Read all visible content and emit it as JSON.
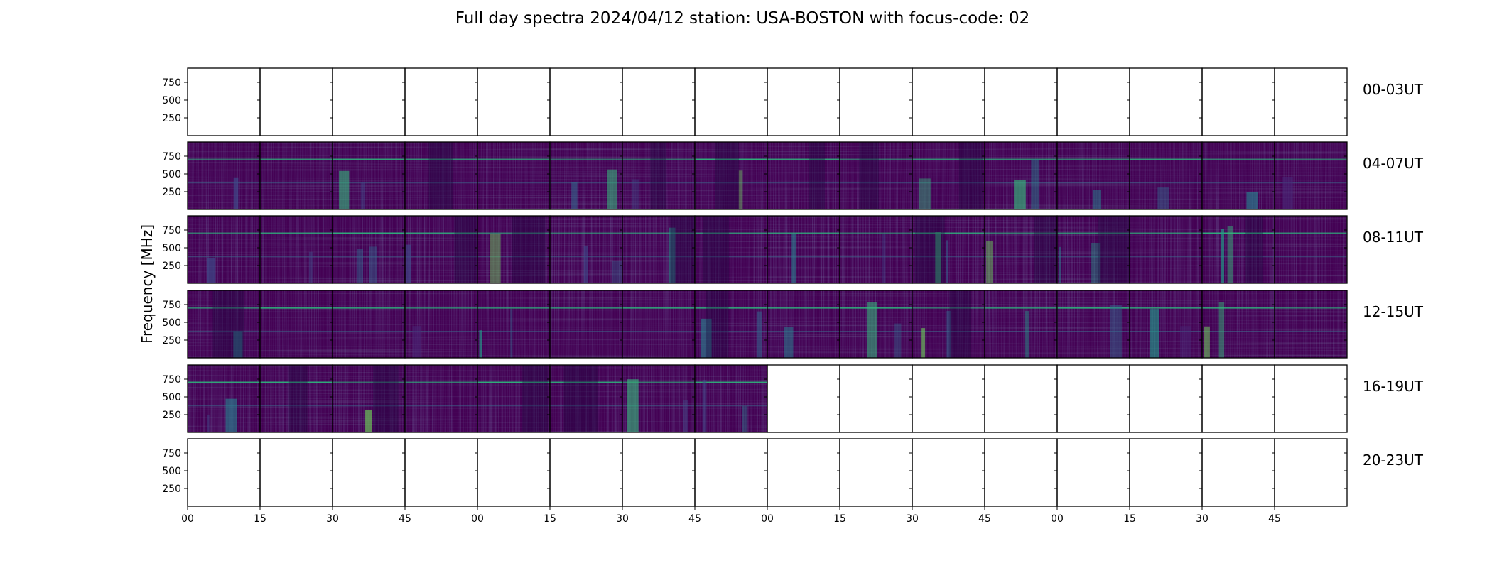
{
  "chart_data": {
    "type": "heatmap",
    "title": "Full day spectra 2024/04/12 station: USA-BOSTON with focus-code: 02",
    "ylabel": "Frequency [MHz]",
    "yticks": [
      "750",
      "500",
      "250"
    ],
    "xticks": [
      "00",
      "15",
      "30",
      "45",
      "00",
      "15",
      "30",
      "45",
      "00",
      "15",
      "30",
      "45",
      "00",
      "15",
      "30",
      "45"
    ],
    "colormap": "viridis",
    "background_color": "#440154",
    "rows": [
      {
        "label": "00-03UT",
        "filled_panels": 0
      },
      {
        "label": "04-07UT",
        "filled_panels": 16
      },
      {
        "label": "08-11UT",
        "filled_panels": 16
      },
      {
        "label": "12-15UT",
        "filled_panels": 16
      },
      {
        "label": "16-19UT",
        "filled_panels": 8
      },
      {
        "label": "20-23UT",
        "filled_panels": 0
      }
    ],
    "panels_per_row": 16
  }
}
